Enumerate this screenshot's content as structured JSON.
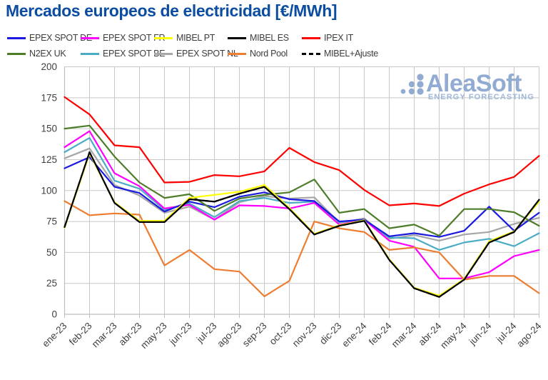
{
  "title": "Mercados europeos de electricidad [€/MWh]",
  "logo": {
    "name": "AleaSoft",
    "tagline": "ENERGY FORECASTING",
    "color": "#92abd3",
    "tagline_color": "#9fb8da"
  },
  "style": {
    "title_color": "#0c4da2",
    "grid_color": "#c8c8c8",
    "axis_color": "#bfbfbf",
    "tick_label_color": "#404040"
  },
  "chart_data": {
    "type": "line",
    "title": "Mercados europeos de electricidad [€/MWh]",
    "xlabel": "",
    "ylabel": "",
    "ylim": [
      0,
      200
    ],
    "y_ticks": [
      0,
      25,
      50,
      75,
      100,
      125,
      150,
      175,
      200
    ],
    "grid": true,
    "legend_position": "top",
    "categories": [
      "ene-23",
      "feb-23",
      "mar-23",
      "abr-23",
      "may-23",
      "jun-23",
      "jul-23",
      "ago-23",
      "sep-23",
      "oct-23",
      "nov-23",
      "dic-23",
      "ene-24",
      "feb-24",
      "mar-24",
      "abr-24",
      "may-24",
      "jun-24",
      "jul-24",
      "ago-24"
    ],
    "series": [
      {
        "name": "EPEX SPOT DE",
        "color": "#1a1ae0",
        "dash": false,
        "values": [
          118,
          127,
          103,
          98,
          83,
          91,
          86.5,
          95,
          98.5,
          93,
          91.5,
          75,
          76.5,
          63,
          65.5,
          62.5,
          67.5,
          87,
          67.5,
          82
        ]
      },
      {
        "name": "EPEX SPOT FR",
        "color": "#ff00ff",
        "dash": false,
        "values": [
          135,
          148,
          114,
          103.5,
          85.5,
          88.5,
          76.5,
          88,
          87.5,
          85.5,
          90,
          72.5,
          76.5,
          59.5,
          54.5,
          29,
          29,
          34,
          47,
          52
        ]
      },
      {
        "name": "MIBEL PT",
        "color": "#ffff00",
        "dash": false,
        "values": [
          70,
          130,
          90.5,
          75.5,
          75.5,
          94,
          96.5,
          99,
          104.5,
          86,
          65,
          72,
          76,
          44.5,
          21.5,
          15,
          28.5,
          59,
          67,
          91
        ]
      },
      {
        "name": "MIBEL ES",
        "color": "#000000",
        "dash": false,
        "values": [
          70.5,
          131,
          90,
          74.5,
          74.5,
          93,
          91,
          97.5,
          103,
          85,
          64.5,
          71.5,
          75.5,
          44,
          21,
          14,
          28,
          58,
          66.5,
          92.5
        ]
      },
      {
        "name": "IPEX IT",
        "color": "#ff0000",
        "dash": false,
        "values": [
          175.5,
          161.5,
          136.5,
          135,
          106.5,
          107,
          112.5,
          111.5,
          115.5,
          134.5,
          123,
          116.5,
          100.5,
          88,
          89.5,
          87.5,
          97.5,
          105,
          111,
          128
        ]
      },
      {
        "name": "N2EX UK",
        "color": "#4e7d2a",
        "dash": false,
        "values": [
          150,
          152.5,
          127.5,
          106.5,
          94,
          97,
          83.5,
          93.5,
          96.5,
          98.5,
          109,
          82,
          85,
          69.5,
          72.5,
          63.5,
          85,
          85,
          82.5,
          71.5
        ]
      },
      {
        "name": "EPEX SPOT BE",
        "color": "#4bacc6",
        "dash": false,
        "values": [
          131,
          142.5,
          108,
          101.5,
          84.5,
          89.5,
          78.5,
          91.5,
          94,
          90,
          91,
          74.5,
          76,
          62,
          61.5,
          52,
          58,
          61,
          55,
          65.5
        ]
      },
      {
        "name": "EPEX SPOT NL",
        "color": "#a6a6a6",
        "dash": false,
        "values": [
          126,
          134,
          104.5,
          96,
          82,
          87,
          76.5,
          90.5,
          95.5,
          93.5,
          94.5,
          74,
          77.5,
          61,
          64,
          59.5,
          64.5,
          66.5,
          73,
          78
        ]
      },
      {
        "name": "Nord Pool",
        "color": "#ed7d31",
        "dash": false,
        "values": [
          91.5,
          80,
          81.5,
          80.5,
          39.5,
          52,
          36.5,
          34.5,
          14.5,
          27,
          75,
          69.5,
          66.5,
          52,
          54,
          50,
          28,
          31,
          31,
          17
        ]
      },
      {
        "name": "MIBEL+Ajuste",
        "color": "#000000",
        "dash": true,
        "values": [
          70.5,
          131,
          90,
          74.5,
          74.5,
          93,
          91,
          97.5,
          103,
          85,
          64.5,
          71.5,
          75.5,
          44,
          21,
          14,
          28,
          58,
          66.5,
          92.5
        ]
      }
    ],
    "draw_order": [
      "EPEX SPOT NL",
      "EPEX SPOT BE",
      "EPEX SPOT FR",
      "EPEX SPOT DE",
      "N2EX UK",
      "Nord Pool",
      "MIBEL+Ajuste",
      "MIBEL PT",
      "MIBEL ES",
      "IPEX IT"
    ]
  }
}
